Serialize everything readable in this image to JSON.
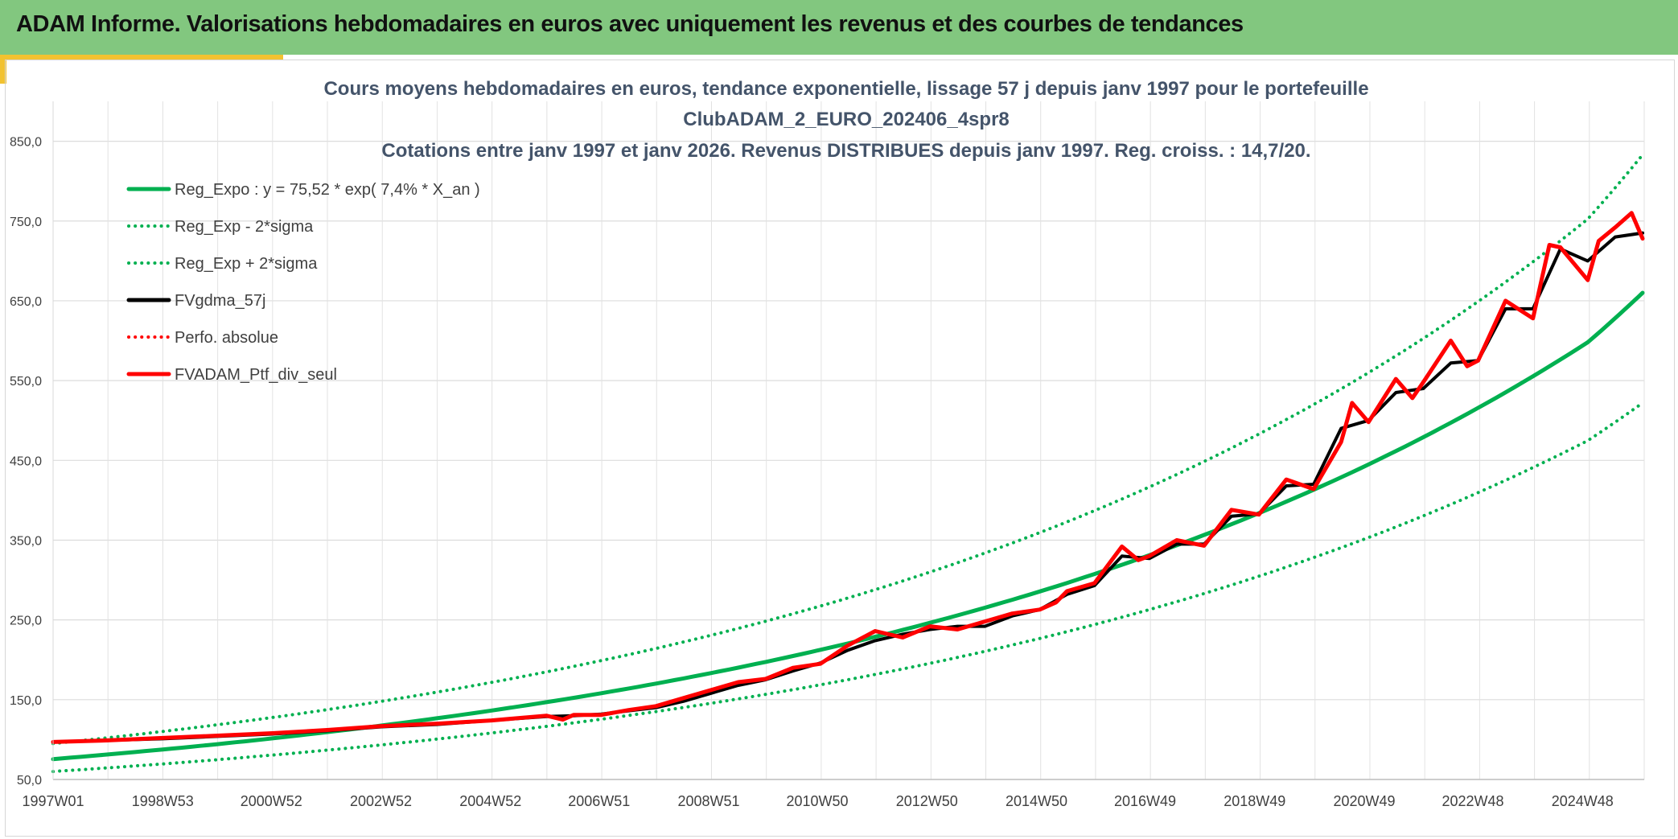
{
  "header": {
    "title": "ADAM Informe. Valorisations hebdomadaires en euros avec uniquement les revenus et des courbes de tendances"
  },
  "colors": {
    "header_bg": "#82c77f",
    "accent_gold": "#f2c230",
    "trend_green": "#00b050",
    "smoothed_black": "#000000",
    "portfolio_red": "#ff0000"
  },
  "chart_data": {
    "type": "line",
    "title_lines": [
      "Cours moyens hebdomadaires en euros, tendance exponentielle, lissage 57 j depuis janv 1997 pour le portefeuille",
      "ClubADAM_2_EURO_202406_4spr8",
      "Cotations entre janv 1997 et janv 2026. Revenus DISTRIBUES depuis janv 1997. Reg. croiss. : 14,7/20."
    ],
    "x_range": [
      "1997W01",
      "2026W02"
    ],
    "x_tick_labels": [
      "1997W01",
      "1998W53",
      "2000W52",
      "2002W52",
      "2004W52",
      "2006W51",
      "2008W51",
      "2010W50",
      "2012W50",
      "2014W50",
      "2016W49",
      "2018W49",
      "2020W49",
      "2022W48",
      "2024W48"
    ],
    "y_tick_labels": [
      "50,0",
      "150,0",
      "250,0",
      "350,0",
      "450,0",
      "550,0",
      "650,0",
      "750,0",
      "850,0"
    ],
    "ylim": [
      50,
      900
    ],
    "grid": true,
    "legend_position": "top-left",
    "legend": [
      {
        "label": "Reg_Expo : y = 75,52 * exp( 7,4% *  X_an )",
        "color": "#00b050",
        "style": "solid"
      },
      {
        "label": "Reg_Exp - 2*sigma",
        "color": "#00b050",
        "style": "dotted"
      },
      {
        "label": "Reg_Exp + 2*sigma",
        "color": "#00b050",
        "style": "dotted"
      },
      {
        "label": "FVgdma_57j",
        "color": "#000000",
        "style": "solid"
      },
      {
        "label": "Perfo. absolue",
        "color": "#ff0000",
        "style": "dotted"
      },
      {
        "label": "FVADAM_Ptf_div_seul",
        "color": "#ff0000",
        "style": "solid"
      }
    ],
    "series": [
      {
        "name": "Reg_Expo : y = 75,52 * exp( 7,4% *  X_an )",
        "style": "solid",
        "color": "#00b050",
        "x": [
          1997,
          1999,
          2001,
          2003,
          2005,
          2007,
          2009,
          2011,
          2013,
          2015,
          2017,
          2019,
          2021,
          2023,
          2025,
          2026
        ],
        "y": [
          75.5,
          87.6,
          101.5,
          117.7,
          136.4,
          158.1,
          183.3,
          212.5,
          246.4,
          285.6,
          331.1,
          383.8,
          444.9,
          515.8,
          598.0,
          660.0
        ]
      },
      {
        "name": "Reg_Exp - 2*sigma",
        "style": "dotted",
        "color": "#00b050",
        "x": [
          1997,
          1999,
          2001,
          2003,
          2005,
          2007,
          2009,
          2011,
          2013,
          2015,
          2017,
          2019,
          2021,
          2023,
          2025,
          2026
        ],
        "y": [
          60.0,
          69.5,
          80.6,
          93.4,
          108.3,
          125.5,
          145.5,
          168.7,
          195.6,
          226.8,
          262.9,
          304.8,
          353.3,
          409.6,
          474.8,
          522.0
        ]
      },
      {
        "name": "Reg_Exp + 2*sigma",
        "style": "dotted",
        "color": "#00b050",
        "x": [
          1997,
          1999,
          2001,
          2003,
          2005,
          2007,
          2009,
          2011,
          2013,
          2015,
          2017,
          2019,
          2021,
          2023,
          2025,
          2026
        ],
        "y": [
          95.0,
          110.2,
          127.7,
          148.1,
          171.7,
          199.0,
          230.7,
          267.4,
          310.0,
          359.4,
          416.6,
          483.0,
          559.9,
          649.1,
          752.5,
          833.0
        ]
      },
      {
        "name": "FVgdma_57j",
        "style": "solid",
        "color": "#000000",
        "x": [
          1997.0,
          1998.0,
          1999.0,
          2000.0,
          2001.0,
          2002.0,
          2003.0,
          2004.0,
          2005.0,
          2006.0,
          2006.5,
          2007.0,
          2007.5,
          2008.0,
          2008.5,
          2009.0,
          2009.5,
          2010.0,
          2010.5,
          2011.0,
          2011.5,
          2012.0,
          2012.5,
          2013.0,
          2013.5,
          2014.0,
          2014.5,
          2015.0,
          2015.5,
          2016.0,
          2016.5,
          2017.0,
          2017.5,
          2018.0,
          2018.5,
          2019.0,
          2019.5,
          2020.0,
          2020.5,
          2021.0,
          2021.5,
          2022.0,
          2022.5,
          2023.0,
          2023.5,
          2024.0,
          2024.5,
          2025.0,
          2025.5,
          2026.0
        ],
        "y": [
          97,
          99,
          101,
          104,
          107,
          111,
          116,
          119,
          124,
          129,
          130,
          132,
          136,
          140,
          148,
          158,
          168,
          175,
          186,
          196,
          212,
          224,
          232,
          238,
          242,
          242,
          255,
          263,
          282,
          293,
          330,
          327,
          345,
          345,
          380,
          383,
          418,
          420,
          490,
          500,
          535,
          540,
          572,
          575,
          640,
          640,
          715,
          700,
          730,
          735
        ]
      },
      {
        "name": "FVADAM_Ptf_div_seul",
        "style": "solid",
        "color": "#ff0000",
        "x": [
          1997.0,
          1998.0,
          1999.0,
          2000.0,
          2001.0,
          2002.0,
          2003.0,
          2004.0,
          2005.0,
          2006.0,
          2006.3,
          2006.5,
          2007.0,
          2007.5,
          2008.0,
          2008.5,
          2009.0,
          2009.5,
          2010.0,
          2010.5,
          2011.0,
          2011.5,
          2012.0,
          2012.5,
          2013.0,
          2013.5,
          2014.0,
          2014.5,
          2015.0,
          2015.3,
          2015.5,
          2016.0,
          2016.5,
          2016.8,
          2017.0,
          2017.5,
          2018.0,
          2018.5,
          2019.0,
          2019.5,
          2020.0,
          2020.5,
          2020.7,
          2021.0,
          2021.5,
          2021.8,
          2022.0,
          2022.5,
          2022.8,
          2023.0,
          2023.5,
          2024.0,
          2024.3,
          2024.5,
          2025.0,
          2025.2,
          2025.5,
          2025.8,
          2026.0
        ],
        "y": [
          97,
          99,
          102,
          105,
          108,
          112,
          117,
          120,
          124,
          130,
          125,
          131,
          131,
          137,
          142,
          152,
          162,
          172,
          176,
          190,
          195,
          218,
          236,
          228,
          242,
          238,
          248,
          258,
          263,
          272,
          286,
          296,
          342,
          325,
          330,
          350,
          343,
          388,
          382,
          426,
          414,
          473,
          522,
          498,
          552,
          528,
          548,
          600,
          568,
          575,
          650,
          628,
          720,
          717,
          676,
          725,
          742,
          760,
          728
        ]
      }
    ]
  }
}
